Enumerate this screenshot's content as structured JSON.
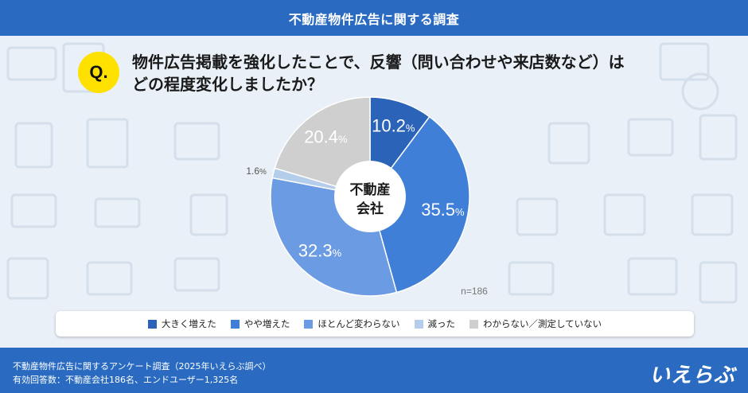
{
  "header": {
    "title": "不動産物件広告に関する調査"
  },
  "question": {
    "badge": "Q.",
    "line1": "物件広告掲載を強化したことで、反響（問い合わせや来店数など）は",
    "line2": "どの程度変化しましたか？"
  },
  "chart_data": {
    "type": "pie",
    "center_label": [
      "不動産",
      "会社"
    ],
    "sample_size": "n=186",
    "slices": [
      {
        "name": "大きく増えた",
        "value": 10.2,
        "color": "#2a63b8"
      },
      {
        "name": "やや増えた",
        "value": 35.5,
        "color": "#3f7fd8"
      },
      {
        "name": "ほとんど変わらない",
        "value": 32.3,
        "color": "#6b9be3"
      },
      {
        "name": "減った",
        "value": 1.6,
        "color": "#b3cdea"
      },
      {
        "name": "わからない／測定していない",
        "value": 20.4,
        "color": "#cfcfcf"
      }
    ]
  },
  "footer": {
    "line1": "不動産物件広告に関するアンケート調査（2025年いえらぶ調べ）",
    "line2": "有効回答数：不動産会社186名、エンドユーザー1,325名",
    "logo": "いえらぶ"
  }
}
